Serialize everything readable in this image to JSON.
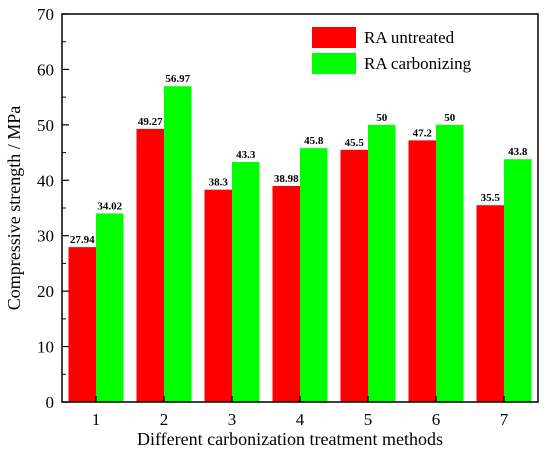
{
  "chart_data": {
    "type": "bar",
    "categories": [
      "1",
      "2",
      "3",
      "4",
      "5",
      "6",
      "7"
    ],
    "series": [
      {
        "name": "RA untreated",
        "color": "#ff0000",
        "values": [
          27.94,
          49.27,
          38.3,
          38.98,
          45.5,
          47.2,
          35.5
        ],
        "labels": [
          "27.94",
          "49.27",
          "38.3",
          "38.98",
          "45.5",
          "47.2",
          "35.5"
        ]
      },
      {
        "name": "RA carbonizing",
        "color": "#00ff00",
        "values": [
          34.02,
          56.97,
          43.3,
          45.8,
          50,
          50,
          43.8
        ],
        "labels": [
          "34.02",
          "56.97",
          "43.3",
          "45.8",
          "50",
          "50",
          "43.8"
        ]
      }
    ],
    "xlabel": "Different carbonization treatment methods",
    "ylabel": "Compressive strength / MPa",
    "ylim": [
      0,
      70
    ],
    "yticks": [
      "0",
      "10",
      "20",
      "30",
      "40",
      "50",
      "60",
      "70"
    ],
    "legend_position": "top-right",
    "grid": false
  }
}
